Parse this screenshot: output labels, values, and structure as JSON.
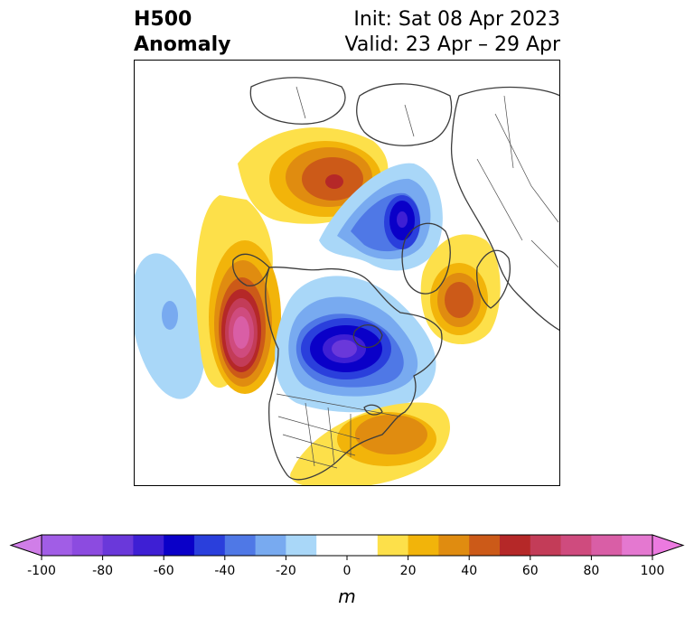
{
  "title": {
    "left_line1": "H500",
    "left_line2": "Anomaly",
    "right_line1": "Init: Sat 08 Apr 2023",
    "right_line2": "Valid: 23 Apr – 29 Apr"
  },
  "colorbar": {
    "unit_label": "m",
    "ticks": [
      "-100",
      "-80",
      "-60",
      "-40",
      "-20",
      "0",
      "20",
      "40",
      "60",
      "80",
      "100"
    ],
    "bins": [
      {
        "from": -100,
        "to": -90,
        "color": "#a15de6"
      },
      {
        "from": -90,
        "to": -80,
        "color": "#8c4be0"
      },
      {
        "from": -80,
        "to": -70,
        "color": "#6a38da"
      },
      {
        "from": -70,
        "to": -60,
        "color": "#3e1fd4"
      },
      {
        "from": -60,
        "to": -50,
        "color": "#0a00c8"
      },
      {
        "from": -50,
        "to": -40,
        "color": "#2a3fdc"
      },
      {
        "from": -40,
        "to": -30,
        "color": "#4f78e6"
      },
      {
        "from": -30,
        "to": -20,
        "color": "#78aaf0"
      },
      {
        "from": -20,
        "to": -10,
        "color": "#a9d7f8"
      },
      {
        "from": -10,
        "to": 10,
        "color": "#ffffff"
      },
      {
        "from": 10,
        "to": 20,
        "color": "#fde04a"
      },
      {
        "from": 20,
        "to": 30,
        "color": "#f2b40a"
      },
      {
        "from": 30,
        "to": 40,
        "color": "#e08c10"
      },
      {
        "from": 40,
        "to": 50,
        "color": "#cc5a18"
      },
      {
        "from": 50,
        "to": 60,
        "color": "#b52828"
      },
      {
        "from": 60,
        "to": 70,
        "color": "#c33c58"
      },
      {
        "from": 70,
        "to": 80,
        "color": "#cf4b7e"
      },
      {
        "from": 80,
        "to": 90,
        "color": "#d95ea6"
      },
      {
        "from": 90,
        "to": 100,
        "color": "#e478d0"
      }
    ],
    "under_color": "#d07ee8",
    "over_color": "#ec7ae0"
  },
  "map": {
    "projection": "north-polar-stereographic",
    "anomaly_centers": [
      {
        "region": "Gulf of Alaska / NE Pacific",
        "peak_m": 85
      },
      {
        "region": "Central Canada / Hudson Bay",
        "peak_m": -75
      },
      {
        "region": "Arctic Ocean / Kara Sea",
        "peak_m": -65
      },
      {
        "region": "Greenland Sea / Svalbard",
        "peak_m": 55
      },
      {
        "region": "Northern Scandinavia",
        "peak_m": 40
      },
      {
        "region": "Southeastern US",
        "peak_m": 35
      },
      {
        "region": "Central North Pacific",
        "peak_m": -25
      }
    ]
  }
}
